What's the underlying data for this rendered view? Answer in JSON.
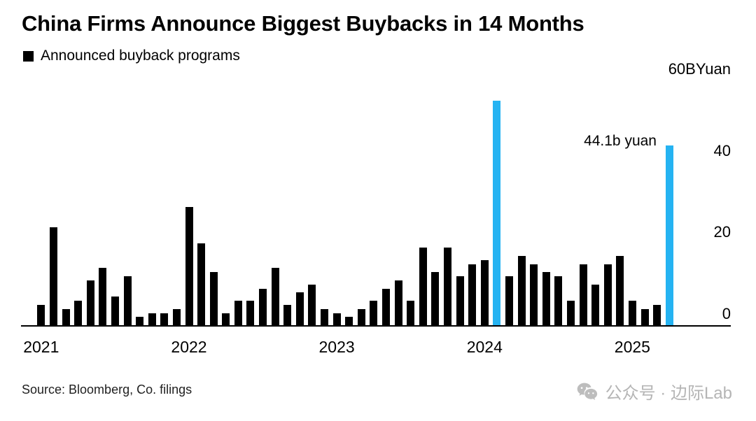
{
  "chart_data": {
    "type": "bar",
    "title": "China Firms Announce Biggest Buybacks in 14 Months",
    "legend": "Announced buyback programs",
    "unit": "B Yuan",
    "x": [
      "2021-01",
      "2021-02",
      "2021-03",
      "2021-04",
      "2021-05",
      "2021-06",
      "2021-07",
      "2021-08",
      "2021-09",
      "2021-10",
      "2021-11",
      "2021-12",
      "2022-01",
      "2022-02",
      "2022-03",
      "2022-04",
      "2022-05",
      "2022-06",
      "2022-07",
      "2022-08",
      "2022-09",
      "2022-10",
      "2022-11",
      "2022-12",
      "2023-01",
      "2023-02",
      "2023-03",
      "2023-04",
      "2023-05",
      "2023-06",
      "2023-07",
      "2023-08",
      "2023-09",
      "2023-10",
      "2023-11",
      "2023-12",
      "2024-01",
      "2024-02",
      "2024-03",
      "2024-04",
      "2024-05",
      "2024-06",
      "2024-07",
      "2024-08",
      "2024-09",
      "2024-10",
      "2024-11",
      "2024-12",
      "2025-01",
      "2025-02",
      "2025-03",
      "2025-04"
    ],
    "values": [
      5,
      24,
      4,
      6,
      11,
      14,
      7,
      12,
      2,
      3,
      3,
      4,
      29,
      20,
      13,
      3,
      6,
      6,
      9,
      14,
      5,
      8,
      10,
      4,
      3,
      2,
      4,
      6,
      9,
      11,
      6,
      19,
      13,
      19,
      12,
      15,
      16,
      55,
      12,
      17,
      15,
      13,
      12,
      6,
      15,
      10,
      15,
      17,
      6,
      4,
      5,
      44.1
    ],
    "highlight_indices": [
      37,
      51
    ],
    "bar_color": "#000000",
    "highlight_color": "#25b3f2",
    "ylim": [
      0,
      60
    ],
    "yticks": [
      0,
      20,
      40,
      60
    ],
    "ytick_labels": [
      "0",
      "20",
      "40",
      "60BYuan"
    ],
    "xtick_labels": [
      "2021",
      "2022",
      "2023",
      "2024",
      "2025"
    ],
    "xtick_indices": [
      0,
      12,
      24,
      36,
      48
    ],
    "annotation": {
      "text": "44.1b yuan",
      "index": 51,
      "value": 44.1
    },
    "grid": "off",
    "legend_position": "top-left",
    "ytick_position": "right"
  },
  "source": "Source: Bloomberg, Co. filings",
  "watermark": {
    "icon": "wechat-icon",
    "text": "公众号 · 边际Lab"
  },
  "colors": {
    "background": "#ffffff",
    "text": "#000000",
    "axis": "#000000",
    "watermark": "#b5b5b5"
  }
}
